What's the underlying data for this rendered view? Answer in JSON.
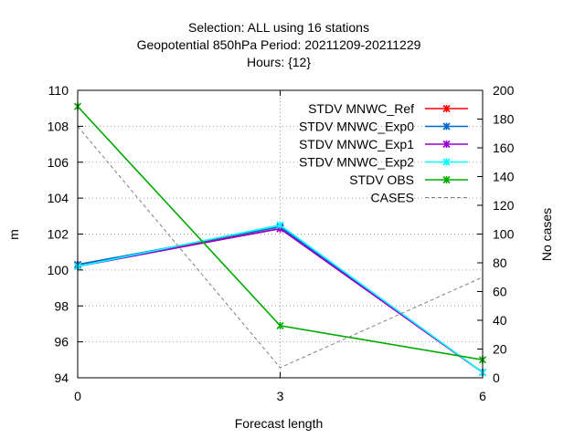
{
  "chart_data": {
    "type": "line",
    "title_lines": [
      "Selection: ALL using    16 stations",
      "Geopotential 850hPa   Period: 20211209-20211229",
      "Hours: {12}"
    ],
    "xlabel": "Forecast length",
    "ylabel": "m",
    "y2label": "No cases",
    "x": [
      0,
      3,
      6
    ],
    "xlim": [
      0,
      6
    ],
    "ylim": [
      94,
      110
    ],
    "y2lim": [
      0,
      200
    ],
    "xticks": [
      0,
      3,
      6
    ],
    "yticks": [
      94,
      96,
      98,
      100,
      102,
      104,
      106,
      108,
      110
    ],
    "y2ticks": [
      0,
      20,
      40,
      60,
      80,
      100,
      120,
      140,
      160,
      180,
      200
    ],
    "grid": true,
    "legend_position": "top-right",
    "series": [
      {
        "name": "STDV MNWC_Ref",
        "values": [
          100.3,
          102.3,
          94.3
        ],
        "color": "#ff0000",
        "axis": "y1"
      },
      {
        "name": "STDV MNWC_Exp0",
        "values": [
          100.3,
          102.4,
          94.3
        ],
        "color": "#0066cc",
        "axis": "y1"
      },
      {
        "name": "STDV MNWC_Exp1",
        "values": [
          100.2,
          102.3,
          94.3
        ],
        "color": "#9400d3",
        "axis": "y1"
      },
      {
        "name": "STDV MNWC_Exp2",
        "values": [
          100.2,
          102.5,
          94.3
        ],
        "color": "#00ffff",
        "axis": "y1"
      },
      {
        "name": "STDV OBS",
        "values": [
          109.1,
          96.9,
          95.0
        ],
        "color": "#00aa00",
        "axis": "y1"
      },
      {
        "name": "CASES",
        "values": [
          175,
          7,
          70
        ],
        "color": "#808080",
        "axis": "y2",
        "dashed": true
      }
    ]
  }
}
